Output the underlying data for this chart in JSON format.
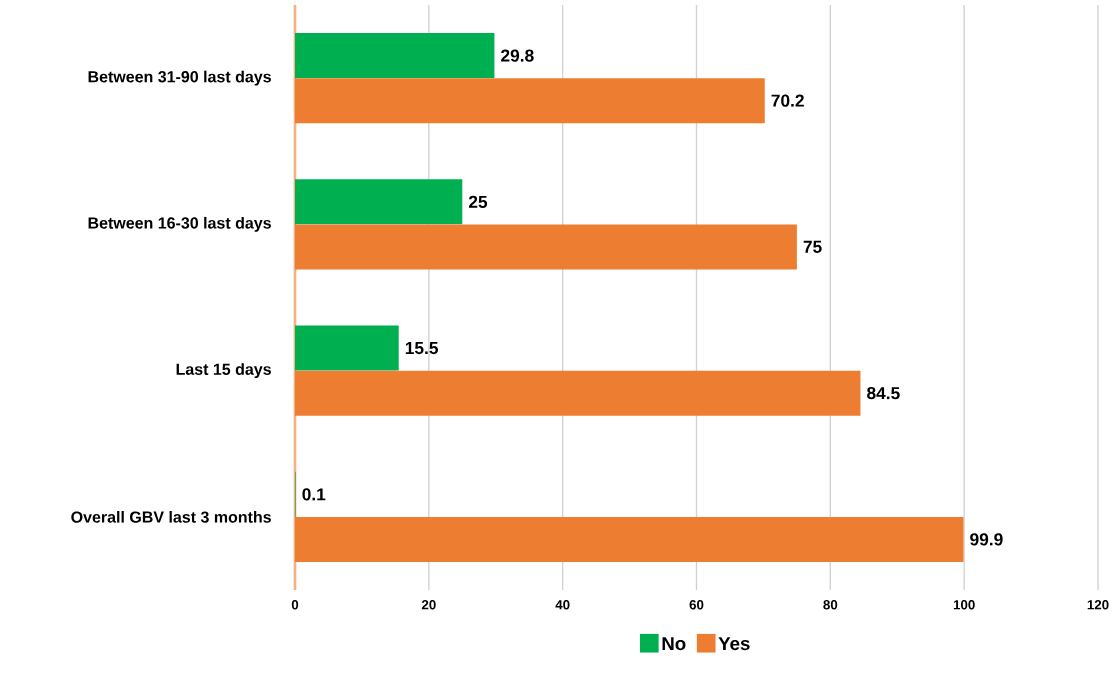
{
  "chart_data": {
    "type": "bar",
    "orientation": "horizontal",
    "categories": [
      "Between 31-90 last days",
      "Between 16-30 last days",
      "Last 15 days",
      "Overall GBV last 3 months"
    ],
    "series": [
      {
        "name": "No",
        "color": "#00b050",
        "values": [
          29.8,
          25,
          15.5,
          0.1
        ]
      },
      {
        "name": "Yes",
        "color": "#ed7d31",
        "values": [
          70.2,
          75,
          84.5,
          99.9
        ]
      }
    ],
    "xlim": [
      0,
      120
    ],
    "xticks": [
      0,
      20,
      40,
      60,
      80,
      100,
      120
    ],
    "grid": "x",
    "legend": "bottom",
    "data_labels": true
  }
}
